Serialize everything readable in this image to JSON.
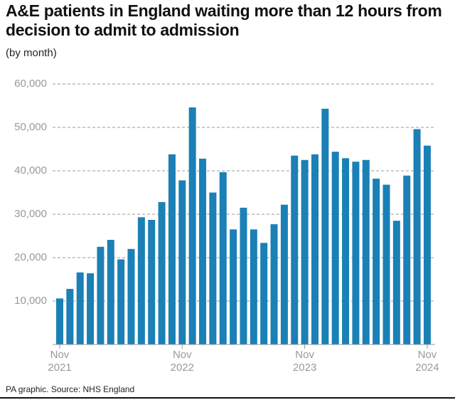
{
  "chart_data": {
    "type": "bar",
    "title": "A&E patients in England waiting more than 12 hours from decision to admit to admission",
    "subtitle": "(by month)",
    "source": "PA graphic. Source: NHS England",
    "categories": [
      "Nov 2021",
      null,
      null,
      null,
      null,
      null,
      null,
      null,
      null,
      null,
      null,
      null,
      "Nov 2022",
      null,
      null,
      null,
      null,
      null,
      null,
      null,
      null,
      null,
      null,
      null,
      "Nov 2023",
      null,
      null,
      null,
      null,
      null,
      null,
      null,
      null,
      null,
      null,
      null,
      "Nov 2024"
    ],
    "values": [
      10600,
      12800,
      16600,
      16400,
      22500,
      24100,
      19600,
      22000,
      29300,
      28700,
      32800,
      43800,
      37800,
      54600,
      42800,
      35000,
      39700,
      26500,
      31500,
      26500,
      23400,
      27700,
      32200,
      43500,
      42500,
      43800,
      54300,
      44400,
      42900,
      42100,
      42500,
      38200,
      36800,
      28500,
      38900,
      49600,
      45800
    ],
    "color": "#1a80b6",
    "ylim": [
      0,
      60000
    ],
    "yticks": [
      {
        "value": 10000,
        "label": "10,000"
      },
      {
        "value": 20000,
        "label": "20,000"
      },
      {
        "value": 30000,
        "label": "30,000"
      },
      {
        "value": 40000,
        "label": "40,000"
      },
      {
        "value": 50000,
        "label": "50,000"
      },
      {
        "value": 60000,
        "label": "60,000"
      }
    ],
    "grid": true
  }
}
